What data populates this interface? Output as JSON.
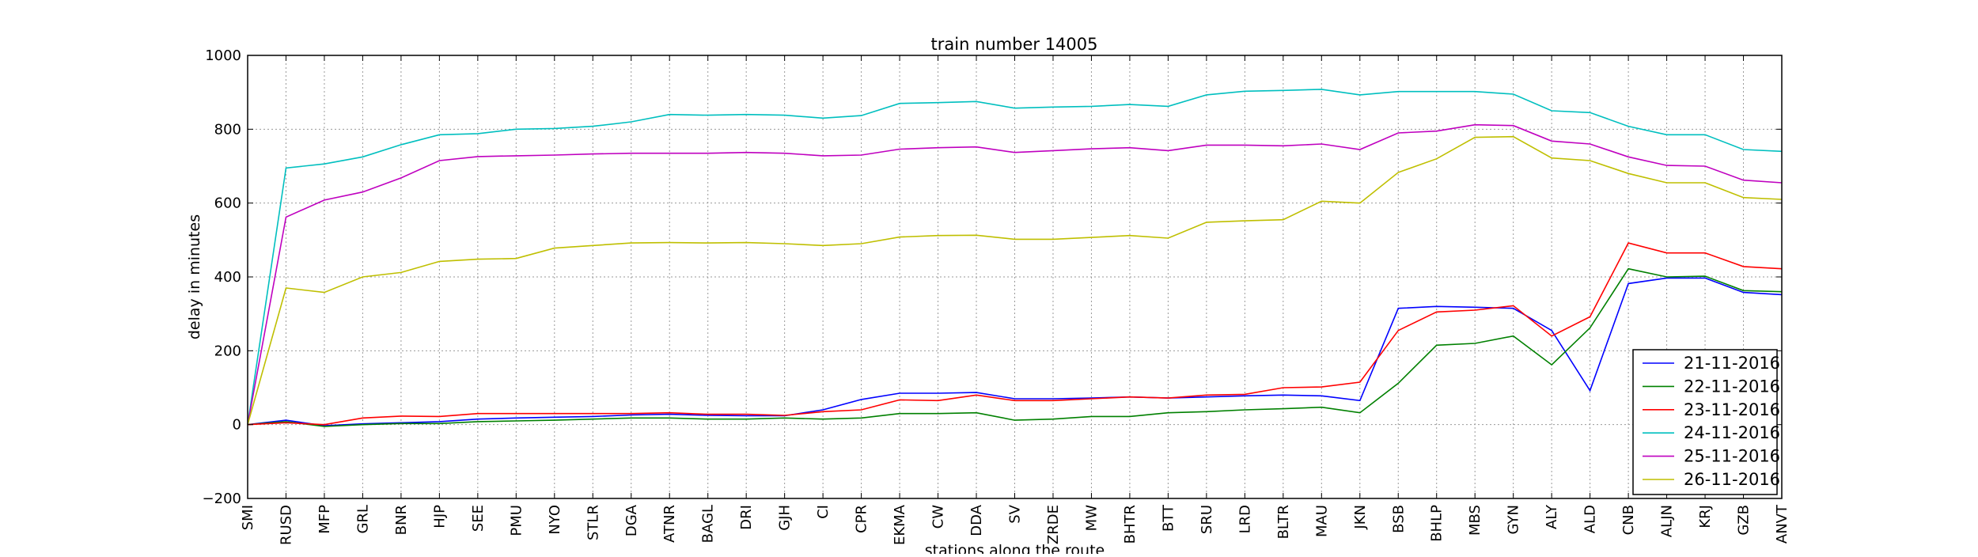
{
  "chart_data": {
    "type": "line",
    "title": "train number 14005",
    "xlabel": "stations along the route",
    "ylabel": "delay in minutes",
    "ylim": [
      -200,
      1000
    ],
    "yticks": [
      -200,
      0,
      200,
      400,
      600,
      800,
      1000
    ],
    "grid": true,
    "legend_position": "bottom-right",
    "categories": [
      "SMI",
      "RUSD",
      "MFP",
      "GRL",
      "BNR",
      "HJP",
      "SEE",
      "PMU",
      "NYO",
      "STLR",
      "DGA",
      "ATNR",
      "BAGL",
      "DRI",
      "GJH",
      "CI",
      "CPR",
      "EKMA",
      "CW",
      "DDA",
      "SV",
      "ZRDE",
      "MW",
      "BHTR",
      "BTT",
      "SRU",
      "LRD",
      "BLTR",
      "MAU",
      "JKN",
      "BSB",
      "BHLP",
      "MBS",
      "GYN",
      "ALY",
      "ALD",
      "CNB",
      "ALJN",
      "KRJ",
      "GZB",
      "ANVT"
    ],
    "series": [
      {
        "name": "21-11-2016",
        "color": "#0000ff",
        "values": [
          0,
          12,
          -3,
          2,
          5,
          8,
          15,
          18,
          20,
          22,
          26,
          28,
          25,
          24,
          24,
          40,
          68,
          85,
          85,
          87,
          70,
          70,
          72,
          75,
          72,
          75,
          78,
          80,
          78,
          65,
          315,
          320,
          318,
          315,
          255,
          92,
          382,
          397,
          397,
          358,
          352
        ]
      },
      {
        "name": "22-11-2016",
        "color": "#008000",
        "values": [
          0,
          8,
          -5,
          0,
          3,
          3,
          8,
          10,
          12,
          15,
          18,
          18,
          15,
          15,
          18,
          15,
          18,
          30,
          30,
          32,
          12,
          15,
          22,
          22,
          32,
          35,
          40,
          43,
          47,
          32,
          112,
          215,
          220,
          240,
          162,
          262,
          422,
          400,
          402,
          363,
          360
        ]
      },
      {
        "name": "23-11-2016",
        "color": "#ff0000",
        "values": [
          0,
          5,
          0,
          18,
          23,
          22,
          30,
          30,
          30,
          30,
          30,
          32,
          28,
          28,
          25,
          35,
          40,
          67,
          65,
          80,
          65,
          65,
          70,
          75,
          72,
          80,
          82,
          100,
          102,
          115,
          255,
          305,
          310,
          322,
          240,
          292,
          492,
          465,
          465,
          428,
          422
        ]
      },
      {
        "name": "24-11-2016",
        "color": "#00bfbf",
        "values": [
          0,
          695,
          706,
          725,
          758,
          785,
          788,
          800,
          802,
          808,
          820,
          840,
          838,
          840,
          838,
          830,
          837,
          870,
          872,
          875,
          857,
          860,
          862,
          867,
          862,
          893,
          903,
          905,
          908,
          893,
          902,
          902,
          902,
          895,
          850,
          845,
          808,
          785,
          785,
          745,
          740
        ]
      },
      {
        "name": "25-11-2016",
        "color": "#bf00bf",
        "values": [
          0,
          562,
          608,
          630,
          668,
          715,
          726,
          728,
          730,
          733,
          735,
          735,
          735,
          737,
          735,
          728,
          730,
          746,
          750,
          752,
          737,
          742,
          747,
          750,
          742,
          757,
          757,
          755,
          760,
          745,
          790,
          795,
          812,
          810,
          768,
          760,
          725,
          702,
          700,
          662,
          655
        ]
      },
      {
        "name": "26-11-2016",
        "color": "#bfbf00",
        "values": [
          0,
          370,
          358,
          400,
          412,
          442,
          448,
          450,
          478,
          485,
          492,
          493,
          492,
          493,
          490,
          485,
          490,
          508,
          512,
          513,
          502,
          502,
          507,
          512,
          505,
          548,
          552,
          555,
          605,
          600,
          683,
          720,
          778,
          780,
          722,
          715,
          680,
          655,
          655,
          615,
          610
        ]
      }
    ]
  }
}
